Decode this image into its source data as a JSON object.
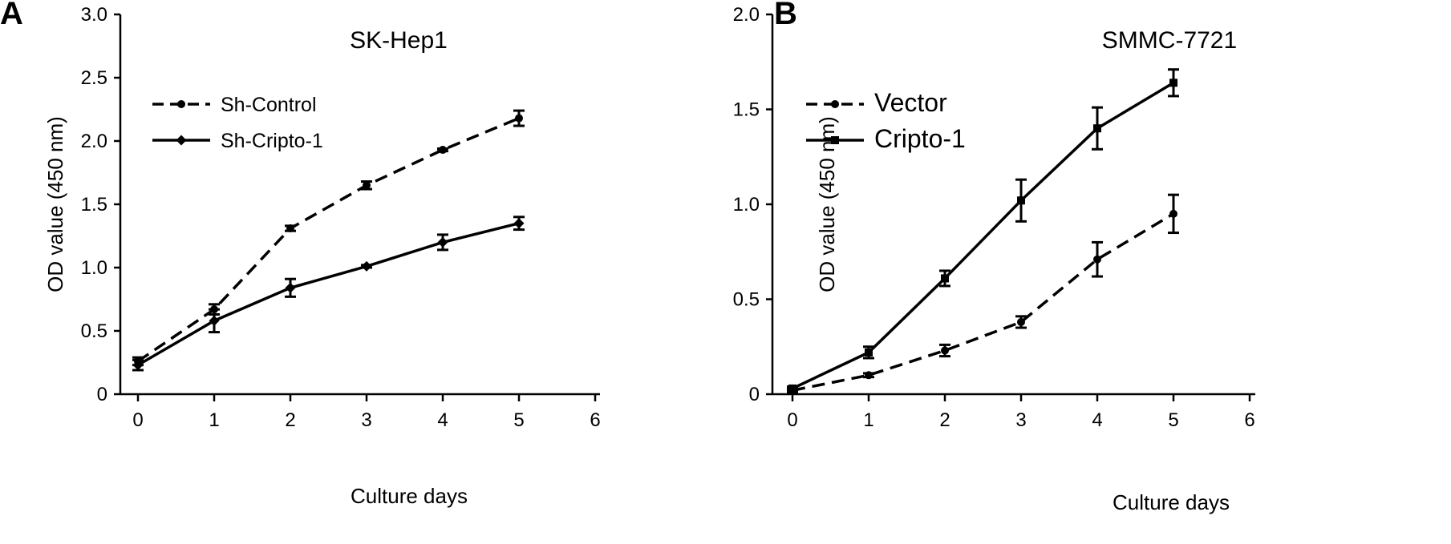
{
  "chart_data": [
    {
      "panel": "A",
      "type": "line",
      "title": "SK-Hep1",
      "xlabel": "Culture days",
      "ylabel": "OD value (450 nm)",
      "xlim": [
        0,
        6
      ],
      "ylim": [
        0,
        3.0
      ],
      "xticks": [
        "0",
        "1",
        "2",
        "3",
        "4",
        "5",
        "6"
      ],
      "yticks": [
        "0",
        "0.5",
        "1.0",
        "1.5",
        "2.0",
        "2.5",
        "3.0"
      ],
      "ytick_values": [
        0,
        0.5,
        1.0,
        1.5,
        2.0,
        2.5,
        3.0
      ],
      "grid": false,
      "legend_position": "top-left",
      "x": [
        0,
        1,
        2,
        3,
        4,
        5
      ],
      "series": [
        {
          "name": "Sh-Control",
          "style": "dashed",
          "marker": "circle",
          "values": [
            0.26,
            0.67,
            1.31,
            1.65,
            1.93,
            2.18
          ],
          "errors": [
            0.03,
            0.04,
            0.02,
            0.03,
            0.01,
            0.06
          ]
        },
        {
          "name": "Sh-Cripto-1",
          "style": "solid",
          "marker": "diamond",
          "values": [
            0.23,
            0.58,
            0.84,
            1.01,
            1.2,
            1.35
          ],
          "errors": [
            0.04,
            0.09,
            0.07,
            0.01,
            0.06,
            0.05
          ]
        }
      ]
    },
    {
      "panel": "B",
      "type": "line",
      "title": "SMMC-7721",
      "xlabel": "Culture days",
      "ylabel": "OD value (450 nm)",
      "xlim": [
        0,
        6
      ],
      "ylim": [
        0,
        2.0
      ],
      "xticks": [
        "0",
        "1",
        "2",
        "3",
        "4",
        "5",
        "6"
      ],
      "yticks": [
        "0",
        "0.5",
        "1.0",
        "1.5",
        "2.0"
      ],
      "ytick_values": [
        0,
        0.5,
        1.0,
        1.5,
        2.0
      ],
      "grid": false,
      "legend_position": "top-left",
      "x": [
        0,
        1,
        2,
        3,
        4,
        5
      ],
      "series": [
        {
          "name": "Vector",
          "style": "dashed",
          "marker": "circle",
          "values": [
            0.02,
            0.1,
            0.23,
            0.38,
            0.71,
            0.95
          ],
          "errors": [
            0.01,
            0.01,
            0.03,
            0.03,
            0.09,
            0.1
          ]
        },
        {
          "name": "Cripto-1",
          "style": "solid",
          "marker": "square",
          "values": [
            0.03,
            0.22,
            0.61,
            1.02,
            1.4,
            1.64
          ],
          "errors": [
            0.01,
            0.03,
            0.04,
            0.11,
            0.11,
            0.07
          ]
        }
      ]
    }
  ]
}
